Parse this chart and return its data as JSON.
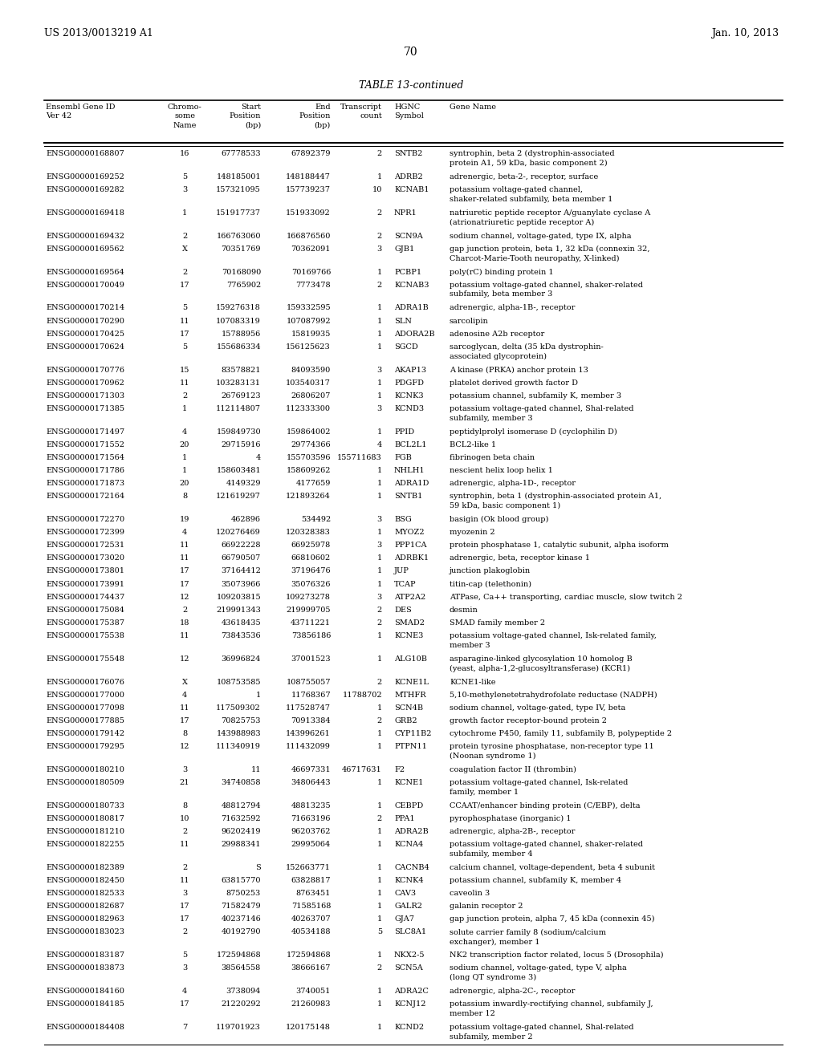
{
  "header_left": "US 2013/0013219 A1",
  "header_right": "Jan. 10, 2013",
  "page_number": "70",
  "table_title": "TABLE 13-continued",
  "bg_color": "#ffffff",
  "text_color": "#000000",
  "font_size": 7.0,
  "header_font_size": 8.5,
  "col_headers": [
    "Ensembl Gene ID\nVer 42",
    "Chromo-\nsome\nName",
    "Start\nPosition\n(bp)",
    "End\nPosition\n(bp)",
    "Transcript\ncount",
    "HGNC\nSymbol",
    "Gene Name"
  ],
  "render_rows": [
    [
      "ENSG00000168807",
      "16",
      "67778533",
      "67892379",
      "2",
      "SNTB2",
      "syntrophin, beta 2 (dystrophin-associated\nprotein A1, 59 kDa, basic component 2)"
    ],
    [
      "ENSG00000169252",
      "5",
      "148185001",
      "148188447",
      "1",
      "ADRB2",
      "adrenergic, beta-2-, receptor, surface"
    ],
    [
      "ENSG00000169282",
      "3",
      "157321095",
      "157739237",
      "10",
      "KCNAB1",
      "potassium voltage-gated channel,\nshaker-related subfamily, beta member 1"
    ],
    [
      "ENSG00000169418",
      "1",
      "151917737",
      "151933092",
      "2",
      "NPR1",
      "natriuretic peptide receptor A/guanylate cyclase A\n(atrionatriuretic peptide receptor A)"
    ],
    [
      "ENSG00000169432",
      "2",
      "166763060",
      "166876560",
      "2",
      "SCN9A",
      "sodium channel, voltage-gated, type IX, alpha"
    ],
    [
      "ENSG00000169562",
      "X",
      "70351769",
      "70362091",
      "3",
      "GJB1",
      "gap junction protein, beta 1, 32 kDa (connexin 32,\nCharcot-Marie-Tooth neuropathy, X-linked)"
    ],
    [
      "ENSG00000169564",
      "2",
      "70168090",
      "70169766",
      "1",
      "PCBP1",
      "poly(rC) binding protein 1"
    ],
    [
      "ENSG00000170049",
      "17",
      "7765902",
      "7773478",
      "2",
      "KCNAB3",
      "potassium voltage-gated channel, shaker-related\nsubfamily, beta member 3"
    ],
    [
      "ENSG00000170214",
      "5",
      "159276318",
      "159332595",
      "1",
      "ADRA1B",
      "adrenergic, alpha-1B-, receptor"
    ],
    [
      "ENSG00000170290",
      "11",
      "107083319",
      "107087992",
      "1",
      "SLN",
      "sarcolipin"
    ],
    [
      "ENSG00000170425",
      "17",
      "15788956",
      "15819935",
      "1",
      "ADORA2B",
      "adenosine A2b receptor"
    ],
    [
      "ENSG00000170624",
      "5",
      "155686334",
      "156125623",
      "1",
      "SGCD",
      "sarcoglycan, delta (35 kDa dystrophin-\nassociated glycoprotein)"
    ],
    [
      "ENSG00000170776",
      "15",
      "83578821",
      "84093590",
      "3",
      "AKAP13",
      "A kinase (PRKA) anchor protein 13"
    ],
    [
      "ENSG00000170962",
      "11",
      "103283131",
      "103540317",
      "1",
      "PDGFD",
      "platelet derived growth factor D"
    ],
    [
      "ENSG00000171303",
      "2",
      "26769123",
      "26806207",
      "1",
      "KCNK3",
      "potassium channel, subfamily K, member 3"
    ],
    [
      "ENSG00000171385",
      "1",
      "112114807",
      "112333300",
      "3",
      "KCND3",
      "potassium voltage-gated channel, Shal-related\nsubfamily, member 3"
    ],
    [
      "ENSG00000171497",
      "4",
      "159849730",
      "159864002",
      "1",
      "PPID",
      "peptidylprolyl isomerase D (cyclophilin D)"
    ],
    [
      "ENSG00000171552",
      "20",
      "29715916",
      "29774366",
      "4",
      "BCL2L1",
      "BCL2-like 1"
    ],
    [
      "ENSG00000171564",
      "1",
      "4",
      "155703596",
      "155711683",
      "FGB",
      "fibrinogen beta chain"
    ],
    [
      "ENSG00000171786",
      "1",
      "158603481",
      "158609262",
      "1",
      "NHLH1",
      "nescient helix loop helix 1"
    ],
    [
      "ENSG00000171873",
      "20",
      "4149329",
      "4177659",
      "1",
      "ADRA1D",
      "adrenergic, alpha-1D-, receptor"
    ],
    [
      "ENSG00000172164",
      "8",
      "121619297",
      "121893264",
      "1",
      "SNTB1",
      "syntrophin, beta 1 (dystrophin-associated protein A1,\n59 kDa, basic component 1)"
    ],
    [
      "ENSG00000172270",
      "19",
      "462896",
      "534492",
      "3",
      "BSG",
      "basigin (Ok blood group)"
    ],
    [
      "ENSG00000172399",
      "4",
      "120276469",
      "120328383",
      "1",
      "MYOZ2",
      "myozenin 2"
    ],
    [
      "ENSG00000172531",
      "11",
      "66922228",
      "66925978",
      "3",
      "PPP1CA",
      "protein phosphatase 1, catalytic subunit, alpha isoform"
    ],
    [
      "ENSG00000173020",
      "11",
      "66790507",
      "66810602",
      "1",
      "ADRBK1",
      "adrenergic, beta, receptor kinase 1"
    ],
    [
      "ENSG00000173801",
      "17",
      "37164412",
      "37196476",
      "1",
      "JUP",
      "junction plakoglobin"
    ],
    [
      "ENSG00000173991",
      "17",
      "35073966",
      "35076326",
      "1",
      "TCAP",
      "titin-cap (telethonin)"
    ],
    [
      "ENSG00000174437",
      "12",
      "109203815",
      "109273278",
      "3",
      "ATP2A2",
      "ATPase, Ca++ transporting, cardiac muscle, slow twitch 2"
    ],
    [
      "ENSG00000175084",
      "2",
      "219991343",
      "219999705",
      "2",
      "DES",
      "desmin"
    ],
    [
      "ENSG00000175387",
      "18",
      "43618435",
      "43711221",
      "2",
      "SMAD2",
      "SMAD family member 2"
    ],
    [
      "ENSG00000175538",
      "11",
      "73843536",
      "73856186",
      "1",
      "KCNE3",
      "potassium voltage-gated channel, Isk-related family,\nmember 3"
    ],
    [
      "ENSG00000175548",
      "12",
      "36996824",
      "37001523",
      "1",
      "ALG10B",
      "asparagine-linked glycosylation 10 homolog B\n(yeast, alpha-1,2-glucosyltransferase) (KCR1)"
    ],
    [
      "ENSG00000176076",
      "X",
      "108753585",
      "108755057",
      "2",
      "KCNE1L",
      "KCNE1-like"
    ],
    [
      "ENSG00000177000",
      "4",
      "1",
      "11768367",
      "11788702",
      "MTHFR",
      "5,10-methylenetetrahydrofolate reductase (NADPH)"
    ],
    [
      "ENSG00000177098",
      "11",
      "117509302",
      "117528747",
      "1",
      "SCN4B",
      "sodium channel, voltage-gated, type IV, beta"
    ],
    [
      "ENSG00000177885",
      "17",
      "70825753",
      "70913384",
      "2",
      "GRB2",
      "growth factor receptor-bound protein 2"
    ],
    [
      "ENSG00000179142",
      "8",
      "143988983",
      "143996261",
      "1",
      "CYP11B2",
      "cytochrome P450, family 11, subfamily B, polypeptide 2"
    ],
    [
      "ENSG00000179295",
      "12",
      "111340919",
      "111432099",
      "1",
      "PTPN11",
      "protein tyrosine phosphatase, non-receptor type 11\n(Noonan syndrome 1)"
    ],
    [
      "ENSG00000180210",
      "3",
      "11",
      "46697331",
      "46717631",
      "F2",
      "coagulation factor II (thrombin)"
    ],
    [
      "ENSG00000180509",
      "21",
      "34740858",
      "34806443",
      "1",
      "KCNE1",
      "potassium voltage-gated channel, Isk-related\nfamily, member 1"
    ],
    [
      "ENSG00000180733",
      "8",
      "48812794",
      "48813235",
      "1",
      "CEBPD",
      "CCAAT/enhancer binding protein (C/EBP), delta"
    ],
    [
      "ENSG00000180817",
      "10",
      "71632592",
      "71663196",
      "2",
      "PPA1",
      "pyrophosphatase (inorganic) 1"
    ],
    [
      "ENSG00000181210",
      "2",
      "96202419",
      "96203762",
      "1",
      "ADRA2B",
      "adrenergic, alpha-2B-, receptor"
    ],
    [
      "ENSG00000182255",
      "11",
      "29988341",
      "29995064",
      "1",
      "KCNA4",
      "potassium voltage-gated channel, shaker-related\nsubfamily, member 4"
    ],
    [
      "ENSG00000182389",
      "2",
      "S",
      "152663771",
      "1",
      "CACNB4",
      "calcium channel, voltage-dependent, beta 4 subunit"
    ],
    [
      "ENSG00000182450",
      "11",
      "63815770",
      "63828817",
      "1",
      "KCNK4",
      "potassium channel, subfamily K, member 4"
    ],
    [
      "ENSG00000182533",
      "3",
      "8750253",
      "8763451",
      "1",
      "CAV3",
      "caveolin 3"
    ],
    [
      "ENSG00000182687",
      "17",
      "71582479",
      "71585168",
      "1",
      "GALR2",
      "galanin receptor 2"
    ],
    [
      "ENSG00000182963",
      "17",
      "40237146",
      "40263707",
      "1",
      "GJA7",
      "gap junction protein, alpha 7, 45 kDa (connexin 45)"
    ],
    [
      "ENSG00000183023",
      "2",
      "40192790",
      "40534188",
      "5",
      "SLC8A1",
      "solute carrier family 8 (sodium/calcium\nexchanger), member 1"
    ],
    [
      "ENSG00000183187",
      "5",
      "172594868",
      "172594868",
      "1",
      "NKX2-5",
      "NK2 transcription factor related, locus 5 (Drosophila)"
    ],
    [
      "ENSG00000183873",
      "3",
      "38564558",
      "38666167",
      "2",
      "SCN5A",
      "sodium channel, voltage-gated, type V, alpha\n(long QT syndrome 3)"
    ],
    [
      "ENSG00000184160",
      "4",
      "3738094",
      "3740051",
      "1",
      "ADRA2C",
      "adrenergic, alpha-2C-, receptor"
    ],
    [
      "ENSG00000184185",
      "17",
      "21220292",
      "21260983",
      "1",
      "KCNJ12",
      "potassium inwardly-rectifying channel, subfamily J,\nmember 12"
    ],
    [
      "ENSG00000184408",
      "7",
      "119701923",
      "120175148",
      "1",
      "KCND2",
      "potassium voltage-gated channel, Shal-related\nsubfamily, member 2"
    ]
  ]
}
